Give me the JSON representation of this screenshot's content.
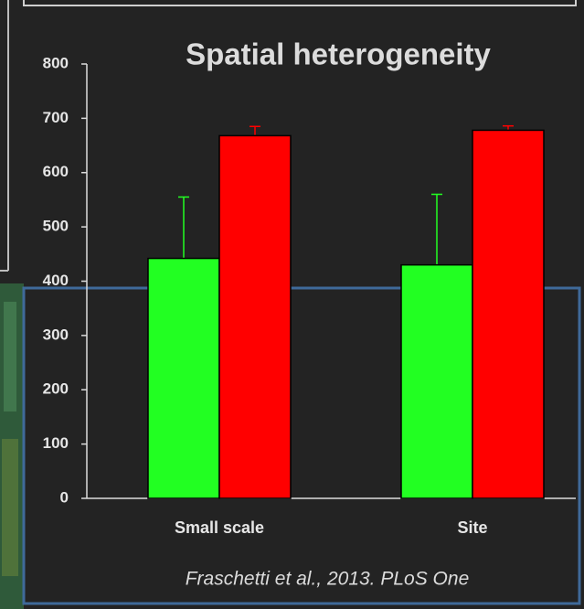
{
  "chart_data": {
    "type": "bar",
    "title": "Spatial heterogeneity",
    "categories": [
      "Small scale",
      "Site"
    ],
    "series": [
      {
        "color": "#22ff22",
        "values": [
          442,
          430
        ],
        "errors": [
          113,
          130
        ]
      },
      {
        "color": "#ff0000",
        "values": [
          668,
          678
        ],
        "errors": [
          17,
          8
        ]
      }
    ],
    "ylim": [
      0,
      800
    ],
    "yticks": [
      0,
      100,
      200,
      300,
      400,
      500,
      600,
      700,
      800
    ],
    "annotation": "Fraschetti et al., 2013.  PLoS One"
  }
}
